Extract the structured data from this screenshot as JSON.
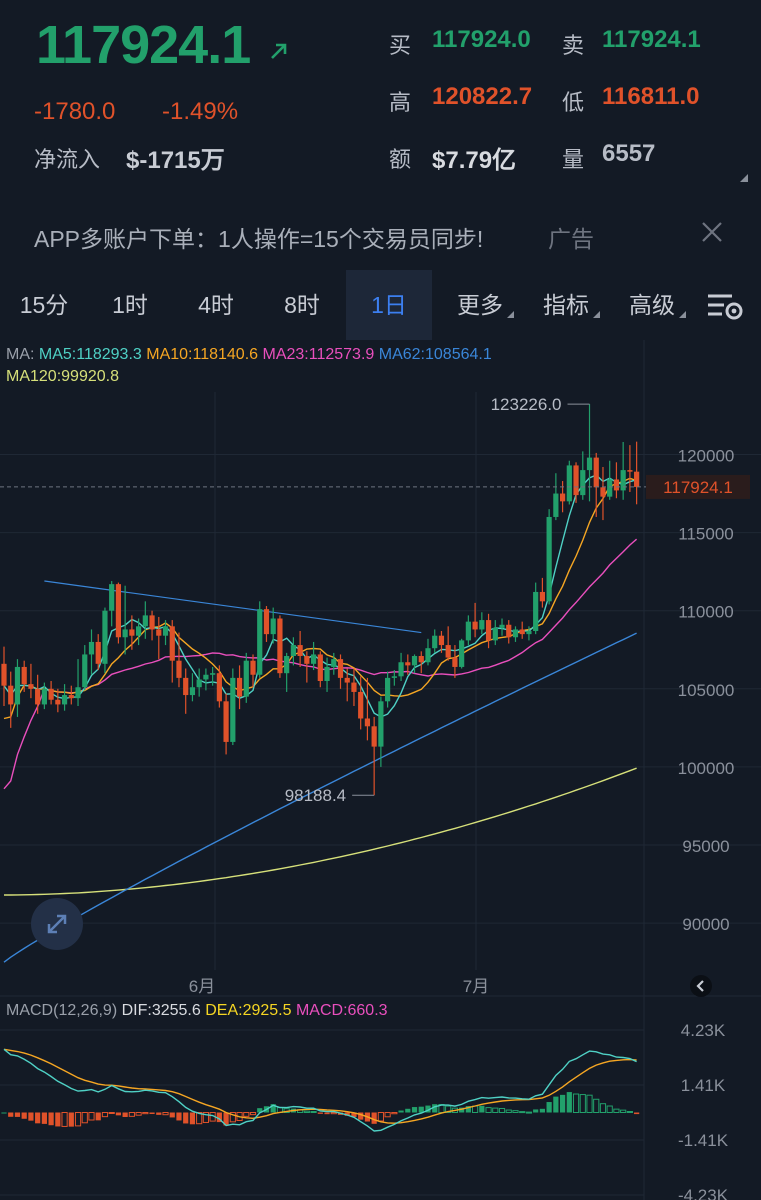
{
  "quote": {
    "last_price": "117924.1",
    "change_abs": "-1780.0",
    "change_pct": "-1.49%",
    "net_inflow_label": "净流入",
    "net_inflow_value": "$-1715万",
    "bid_label": "买",
    "bid_value": "117924.0",
    "ask_label": "卖",
    "ask_value": "117924.1",
    "high_label": "高",
    "high_value": "120822.7",
    "low_label": "低",
    "low_value": "116811.0",
    "amount_label": "额",
    "amount_value": "$7.79亿",
    "volume_label": "量",
    "volume_value": "6557"
  },
  "ad": {
    "text": "APP多账户下单：1人操作=15个交易员同步!",
    "tag": "广告"
  },
  "tabs": [
    {
      "label": "15分",
      "active": false,
      "dropdown": false
    },
    {
      "label": "1时",
      "active": false,
      "dropdown": false
    },
    {
      "label": "4时",
      "active": false,
      "dropdown": false
    },
    {
      "label": "8时",
      "active": false,
      "dropdown": false
    },
    {
      "label": "1日",
      "active": true,
      "dropdown": false
    },
    {
      "label": "更多",
      "active": false,
      "dropdown": true
    },
    {
      "label": "指标",
      "active": false,
      "dropdown": true
    },
    {
      "label": "高级",
      "active": false,
      "dropdown": true
    }
  ],
  "ma_legend": {
    "prefix": "MA:",
    "ma5": "MA5:118293.3",
    "ma10": "MA10:118140.6",
    "ma23": "MA23:112573.9",
    "ma62": "MA62:108564.1",
    "ma120": "MA120:99920.8"
  },
  "macd_legend": {
    "prefix": "MACD(12,26,9)",
    "dif": "DIF:3255.6",
    "dea": "DEA:2925.5",
    "macd": "MACD:660.3"
  },
  "colors": {
    "up": "#22a06b",
    "down": "#e0522a",
    "ma5": "#4fd1c5",
    "ma10": "#f5a623",
    "ma23": "#e94fbd",
    "ma62": "#3a86d8",
    "ma120": "#d6e07a",
    "macd_magenta": "#e94fbd",
    "active_tab": "#3c7ff0"
  },
  "chart_data": {
    "type": "candlestick",
    "price_axis": {
      "ticks": [
        "120000",
        "115000",
        "110000",
        "105000",
        "100000",
        "95000",
        "90000"
      ],
      "range": [
        87000,
        124000
      ]
    },
    "time_axis": {
      "labels": [
        "6月",
        "7月"
      ]
    },
    "current_price_tag": "117924.1",
    "annotations": {
      "high": "123226.0",
      "low": "98188.4"
    },
    "candles": [
      {
        "o": 106600,
        "h": 107700,
        "c": 105200,
        "l": 103900
      },
      {
        "o": 105200,
        "h": 106100,
        "c": 104000,
        "l": 102500
      },
      {
        "o": 104000,
        "h": 106900,
        "c": 106400,
        "l": 103200
      },
      {
        "o": 106400,
        "h": 106800,
        "c": 105300,
        "l": 104800
      },
      {
        "o": 105300,
        "h": 106600,
        "c": 105000,
        "l": 104400
      },
      {
        "o": 105000,
        "h": 105900,
        "c": 104000,
        "l": 103400
      },
      {
        "o": 104000,
        "h": 105400,
        "c": 105000,
        "l": 103700
      },
      {
        "o": 105000,
        "h": 105500,
        "c": 104300,
        "l": 104000
      },
      {
        "o": 104300,
        "h": 105000,
        "c": 104000,
        "l": 103500
      },
      {
        "o": 104000,
        "h": 105300,
        "c": 104600,
        "l": 103600
      },
      {
        "o": 104600,
        "h": 105200,
        "c": 104400,
        "l": 104000
      },
      {
        "o": 104400,
        "h": 106900,
        "c": 105100,
        "l": 103900
      },
      {
        "o": 105100,
        "h": 107800,
        "c": 107200,
        "l": 104900
      },
      {
        "o": 107200,
        "h": 108800,
        "c": 108000,
        "l": 105900
      },
      {
        "o": 108000,
        "h": 108500,
        "c": 106600,
        "l": 106200
      },
      {
        "o": 106600,
        "h": 110200,
        "c": 110000,
        "l": 106000
      },
      {
        "o": 110000,
        "h": 111900,
        "c": 111700,
        "l": 109000
      },
      {
        "o": 111700,
        "h": 111800,
        "c": 108300,
        "l": 107900
      },
      {
        "o": 108300,
        "h": 111600,
        "c": 108800,
        "l": 107200
      },
      {
        "o": 108800,
        "h": 109700,
        "c": 108400,
        "l": 107500
      },
      {
        "o": 108400,
        "h": 109500,
        "c": 109000,
        "l": 107800
      },
      {
        "o": 109000,
        "h": 110600,
        "c": 109700,
        "l": 108200
      },
      {
        "o": 109700,
        "h": 110000,
        "c": 108800,
        "l": 108100
      },
      {
        "o": 108800,
        "h": 109600,
        "c": 108400,
        "l": 106900
      },
      {
        "o": 108400,
        "h": 109400,
        "c": 109000,
        "l": 107800
      },
      {
        "o": 109000,
        "h": 109400,
        "c": 106800,
        "l": 105400
      },
      {
        "o": 106800,
        "h": 108600,
        "c": 105700,
        "l": 105100
      },
      {
        "o": 105700,
        "h": 106300,
        "c": 104600,
        "l": 103400
      },
      {
        "o": 104600,
        "h": 106000,
        "c": 105100,
        "l": 104200
      },
      {
        "o": 105100,
        "h": 106300,
        "c": 105600,
        "l": 104500
      },
      {
        "o": 105600,
        "h": 106300,
        "c": 105900,
        "l": 104900
      },
      {
        "o": 105900,
        "h": 106400,
        "c": 106000,
        "l": 105200
      },
      {
        "o": 106000,
        "h": 106500,
        "c": 104200,
        "l": 103800
      },
      {
        "o": 104200,
        "h": 104700,
        "c": 101600,
        "l": 100800
      },
      {
        "o": 101600,
        "h": 106300,
        "c": 105700,
        "l": 101400
      },
      {
        "o": 105700,
        "h": 106500,
        "c": 104500,
        "l": 103700
      },
      {
        "o": 104500,
        "h": 107300,
        "c": 106800,
        "l": 104100
      },
      {
        "o": 106800,
        "h": 107200,
        "c": 105900,
        "l": 105100
      },
      {
        "o": 105900,
        "h": 110600,
        "c": 110100,
        "l": 105700
      },
      {
        "o": 110100,
        "h": 110300,
        "c": 108500,
        "l": 108000
      },
      {
        "o": 108500,
        "h": 110200,
        "c": 109500,
        "l": 107900
      },
      {
        "o": 109500,
        "h": 109700,
        "c": 106000,
        "l": 105700
      },
      {
        "o": 106000,
        "h": 107300,
        "c": 107100,
        "l": 104800
      },
      {
        "o": 107100,
        "h": 108300,
        "c": 107800,
        "l": 106500
      },
      {
        "o": 107800,
        "h": 108700,
        "c": 107100,
        "l": 106400
      },
      {
        "o": 107100,
        "h": 107400,
        "c": 106600,
        "l": 105400
      },
      {
        "o": 106600,
        "h": 108000,
        "c": 107200,
        "l": 106200
      },
      {
        "o": 107200,
        "h": 107400,
        "c": 105500,
        "l": 105100
      },
      {
        "o": 105500,
        "h": 107000,
        "c": 106400,
        "l": 104800
      },
      {
        "o": 106400,
        "h": 107300,
        "c": 106900,
        "l": 105900
      },
      {
        "o": 106900,
        "h": 107200,
        "c": 105700,
        "l": 105000
      },
      {
        "o": 105700,
        "h": 106300,
        "c": 105400,
        "l": 104200
      },
      {
        "o": 105400,
        "h": 106300,
        "c": 104800,
        "l": 103900
      },
      {
        "o": 104800,
        "h": 105800,
        "c": 103100,
        "l": 102400
      },
      {
        "o": 103100,
        "h": 105700,
        "c": 102600,
        "l": 101700
      },
      {
        "o": 102600,
        "h": 103200,
        "c": 101300,
        "l": 98188
      },
      {
        "o": 101300,
        "h": 104500,
        "c": 104200,
        "l": 100000
      },
      {
        "o": 104200,
        "h": 106100,
        "c": 105700,
        "l": 103800
      },
      {
        "o": 105700,
        "h": 106200,
        "c": 105800,
        "l": 105200
      },
      {
        "o": 105800,
        "h": 107300,
        "c": 106700,
        "l": 105500
      },
      {
        "o": 106700,
        "h": 107200,
        "c": 106500,
        "l": 105900
      },
      {
        "o": 106500,
        "h": 107200,
        "c": 107100,
        "l": 106000
      },
      {
        "o": 107100,
        "h": 107400,
        "c": 106700,
        "l": 106000
      },
      {
        "o": 106700,
        "h": 108200,
        "c": 107600,
        "l": 106500
      },
      {
        "o": 107600,
        "h": 108800,
        "c": 108400,
        "l": 107300
      },
      {
        "o": 108400,
        "h": 108700,
        "c": 107800,
        "l": 107300
      },
      {
        "o": 107800,
        "h": 109000,
        "c": 107000,
        "l": 106800
      },
      {
        "o": 107000,
        "h": 107800,
        "c": 106400,
        "l": 105700
      },
      {
        "o": 106400,
        "h": 108200,
        "c": 108100,
        "l": 106300
      },
      {
        "o": 108100,
        "h": 109700,
        "c": 109300,
        "l": 107800
      },
      {
        "o": 109300,
        "h": 110500,
        "c": 108800,
        "l": 108300
      },
      {
        "o": 108800,
        "h": 109900,
        "c": 109400,
        "l": 108500
      },
      {
        "o": 109400,
        "h": 109800,
        "c": 108100,
        "l": 107600
      },
      {
        "o": 108100,
        "h": 109400,
        "c": 108900,
        "l": 107800
      },
      {
        "o": 108900,
        "h": 109500,
        "c": 109100,
        "l": 108400
      },
      {
        "o": 109100,
        "h": 109400,
        "c": 108300,
        "l": 107900
      },
      {
        "o": 108300,
        "h": 109000,
        "c": 108800,
        "l": 108000
      },
      {
        "o": 108800,
        "h": 109300,
        "c": 108500,
        "l": 108200
      },
      {
        "o": 108500,
        "h": 109000,
        "c": 108700,
        "l": 108100
      },
      {
        "o": 108700,
        "h": 111800,
        "c": 111200,
        "l": 108500
      },
      {
        "o": 111200,
        "h": 112100,
        "c": 110600,
        "l": 110200
      },
      {
        "o": 110600,
        "h": 116500,
        "c": 116000,
        "l": 110400
      },
      {
        "o": 116000,
        "h": 118800,
        "c": 117500,
        "l": 115800
      },
      {
        "o": 117500,
        "h": 118300,
        "c": 117000,
        "l": 116300
      },
      {
        "o": 117000,
        "h": 119600,
        "c": 119300,
        "l": 116800
      },
      {
        "o": 119300,
        "h": 119500,
        "c": 117400,
        "l": 116900
      },
      {
        "o": 117400,
        "h": 120200,
        "c": 119000,
        "l": 117100
      },
      {
        "o": 119000,
        "h": 123226,
        "c": 119800,
        "l": 117000
      },
      {
        "o": 119800,
        "h": 120100,
        "c": 117900,
        "l": 116000
      },
      {
        "o": 117900,
        "h": 119200,
        "c": 117300,
        "l": 115800
      },
      {
        "o": 117300,
        "h": 119600,
        "c": 118400,
        "l": 117100
      },
      {
        "o": 118400,
        "h": 119500,
        "c": 117700,
        "l": 117200
      },
      {
        "o": 117700,
        "h": 120800,
        "c": 119000,
        "l": 117100
      },
      {
        "o": 119000,
        "h": 120600,
        "c": 118900,
        "l": 117600
      },
      {
        "o": 118900,
        "h": 120822,
        "c": 117924,
        "l": 116811
      }
    ],
    "trendline": {
      "from": [
        6,
        111900
      ],
      "to": [
        62,
        108600
      ]
    },
    "macd": {
      "ticks": [
        "4.23K",
        "1.41K",
        "-1.41K",
        "-4.23K"
      ],
      "range": [
        -4230,
        4230
      ],
      "dif_last": 3255.6,
      "dea_last": 2925.5,
      "hist_last": 660.3
    }
  }
}
